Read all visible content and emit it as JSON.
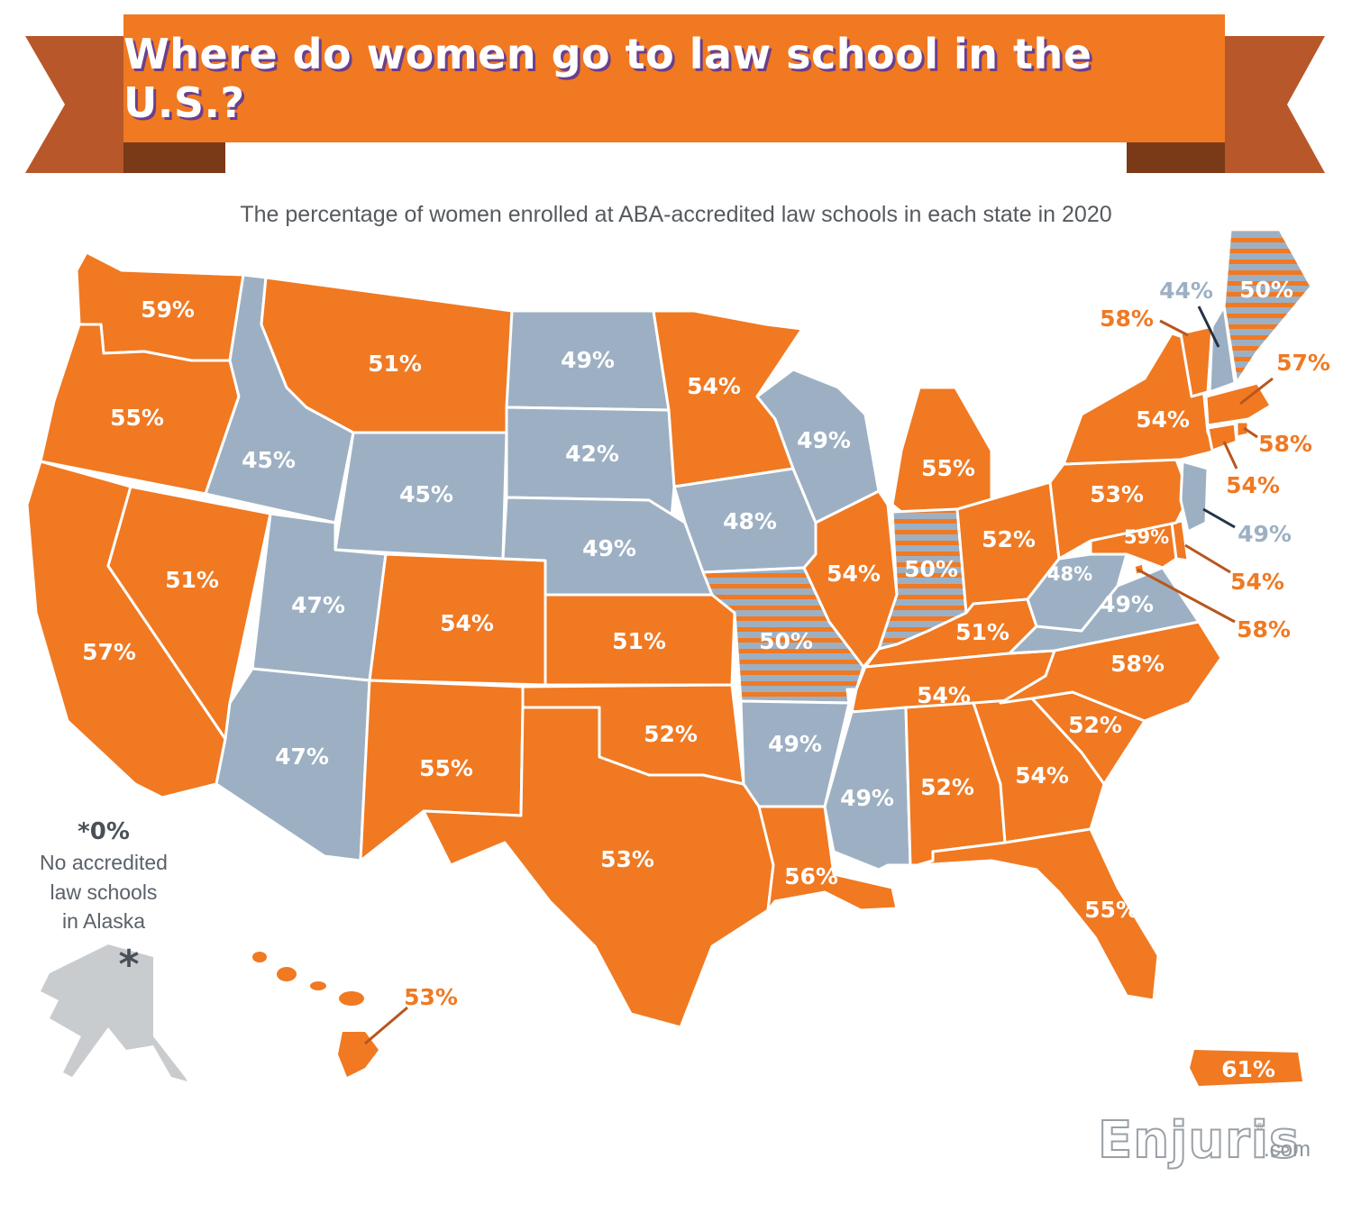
{
  "title": "Where do women go to law school in the U.S.?",
  "subtitle": "The percentage of women enrolled at ABA-accredited law schools in each state in 2020",
  "legend": {
    "colors": {
      "above_50": "#f07922",
      "below_50": "#9db0c3",
      "equal_50": "striped"
    }
  },
  "alaska_note": {
    "value": "*0%",
    "line1": "No accredited",
    "line2": "law schools",
    "line3": "in Alaska",
    "asterisk": "*"
  },
  "states": {
    "WA": "59%",
    "OR": "55%",
    "CA": "57%",
    "NV": "51%",
    "ID": "45%",
    "MT": "51%",
    "WY": "45%",
    "UT": "47%",
    "AZ": "47%",
    "CO": "54%",
    "NM": "55%",
    "ND": "49%",
    "SD": "42%",
    "NE": "49%",
    "KS": "51%",
    "OK": "52%",
    "TX": "53%",
    "MN": "54%",
    "IA": "48%",
    "MO": "50%",
    "AR": "49%",
    "LA": "56%",
    "WI": "49%",
    "IL": "54%",
    "MS": "49%",
    "MI": "55%",
    "IN": "50%",
    "KY": "51%",
    "TN": "54%",
    "AL": "52%",
    "OH": "52%",
    "WV": "48%",
    "VA": "49%",
    "NC": "58%",
    "SC": "52%",
    "GA": "54%",
    "FL": "55%",
    "PA": "53%",
    "NY": "54%",
    "ME": "50%",
    "NH": "44%",
    "VT": "58%",
    "MA": "57%",
    "RI": "58%",
    "CT": "54%",
    "NJ": "49%",
    "DE": "54%",
    "MD": "59%",
    "DC": "58%",
    "HI": "53%",
    "PR": "61%",
    "AK": "*0%"
  },
  "logo": {
    "name": "Enjuris",
    "suffix": ".com",
    "reg": "®"
  }
}
